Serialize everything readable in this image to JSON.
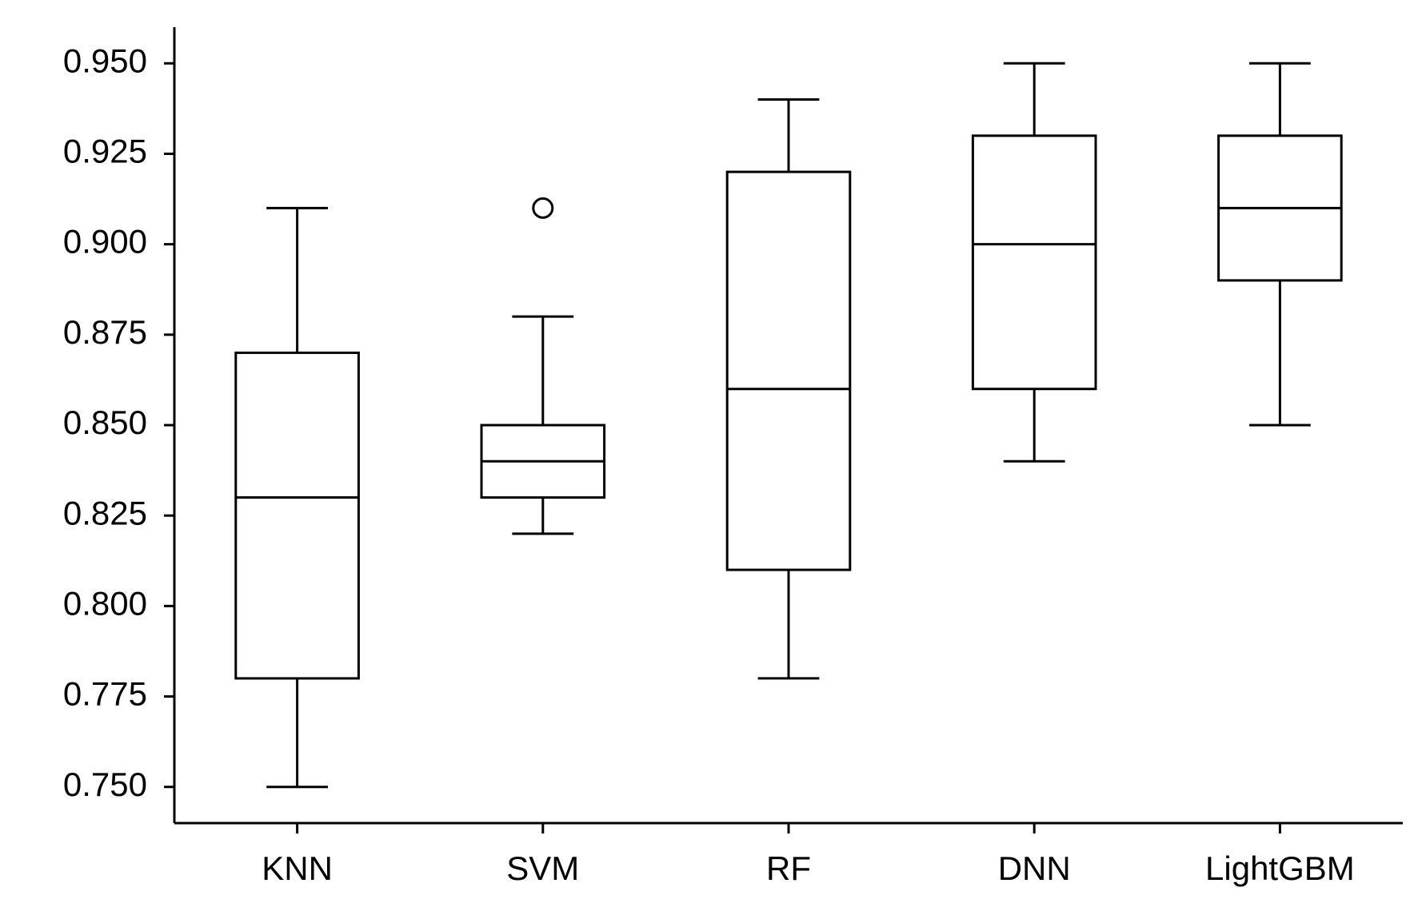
{
  "chart_data": {
    "type": "box",
    "categories": [
      "KNN",
      "SVM",
      "RF",
      "DNN",
      "LightGBM"
    ],
    "whisker_low": [
      0.75,
      0.82,
      0.78,
      0.84,
      0.85
    ],
    "q1": [
      0.78,
      0.83,
      0.81,
      0.86,
      0.89
    ],
    "median": [
      0.83,
      0.84,
      0.86,
      0.9,
      0.91
    ],
    "q3": [
      0.87,
      0.85,
      0.92,
      0.93,
      0.93
    ],
    "whisker_high": [
      0.91,
      0.88,
      0.94,
      0.95,
      0.95
    ],
    "outliers": [
      [],
      [
        0.91
      ],
      [],
      [],
      []
    ],
    "color": "#000000",
    "ylim": [
      0.74,
      0.96
    ],
    "yticks": [
      {
        "value": 0.75,
        "label": "0.750"
      },
      0.775,
      {
        "value": 0.8,
        "label": "0.800"
      },
      0.825,
      {
        "value": 0.85,
        "label": "0.850"
      },
      0.875,
      {
        "value": 0.9,
        "label": "0.900"
      },
      0.925,
      {
        "value": 0.95,
        "label": "0.950"
      }
    ],
    "grid": false
  }
}
